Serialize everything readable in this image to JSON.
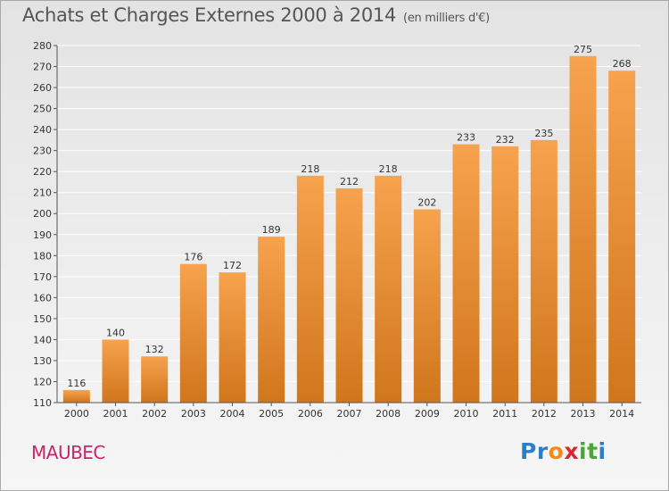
{
  "chart_data": {
    "type": "bar",
    "title": "Achats et Charges Externes 2000 à 2014",
    "subtitle": "(en milliers d'€)",
    "categories": [
      "2000",
      "2001",
      "2002",
      "2003",
      "2004",
      "2005",
      "2006",
      "2007",
      "2008",
      "2009",
      "2010",
      "2011",
      "2012",
      "2013",
      "2014"
    ],
    "values": [
      116,
      140,
      132,
      176,
      172,
      189,
      218,
      212,
      218,
      202,
      233,
      232,
      235,
      275,
      268
    ],
    "ylim": [
      110,
      280
    ],
    "yticks": [
      110,
      120,
      130,
      140,
      150,
      160,
      170,
      180,
      190,
      200,
      210,
      220,
      230,
      240,
      250,
      260,
      270,
      280
    ],
    "grid": true,
    "xlabel": "",
    "ylabel": ""
  },
  "commune": "MAUBEC",
  "logo": {
    "letters": [
      "P",
      "r",
      "o",
      "x",
      "i",
      "t",
      "i"
    ],
    "colors": [
      "#2b7fc8",
      "#2b7fc8",
      "#f08a1c",
      "#d8282e",
      "#4aa832",
      "#4aa832",
      "#2b7fc8"
    ]
  },
  "colors": {
    "bar_light": "#f7a24e",
    "bar_dark": "#d0761c",
    "grid": "#ffffff",
    "axis": "#555555"
  }
}
